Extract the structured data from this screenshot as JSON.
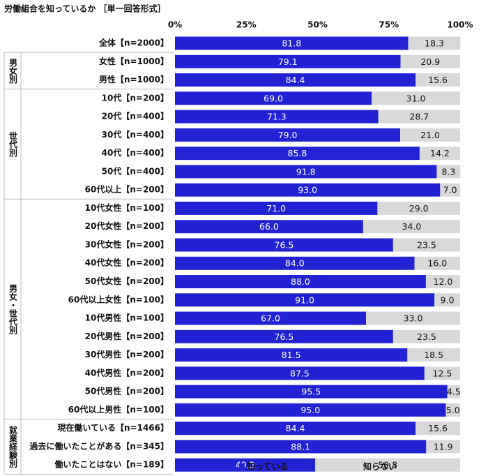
{
  "chart_data": {
    "type": "stacked-bar-h",
    "title": "労働組合を知っているか ［単一回答形式］",
    "categories": [
      "全体【n=2000】",
      "女性【n=1000】",
      "男性【n=1000】",
      "10代【n=200】",
      "20代【n=400】",
      "30代【n=400】",
      "40代【n=400】",
      "50代【n=400】",
      "60代以上【n=200】",
      "10代女性【n=100】",
      "20代女性【n=200】",
      "30代女性【n=200】",
      "40代女性【n=200】",
      "50代女性【n=200】",
      "60代以上女性【n=100】",
      "10代男性【n=100】",
      "20代男性【n=200】",
      "30代男性【n=200】",
      "40代男性【n=200】",
      "50代男性【n=200】",
      "60代以上男性【n=100】",
      "現在働いている【n=1466】",
      "過去に働いたことがある【n=345】",
      "働いたことはない【n=189】"
    ],
    "groups": [
      {
        "label": null,
        "size": 1
      },
      {
        "label": "男女別",
        "size": 2
      },
      {
        "label": "世代別",
        "size": 6
      },
      {
        "label": "男女・世代別",
        "size": 12
      },
      {
        "label": "就業経験別",
        "size": 3
      }
    ],
    "series": [
      {
        "name": "知っている",
        "color": "#2222d4",
        "values": [
          81.8,
          79.1,
          84.4,
          69.0,
          71.3,
          79.0,
          85.8,
          91.8,
          93.0,
          71.0,
          66.0,
          76.5,
          84.0,
          88.0,
          91.0,
          67.0,
          76.5,
          81.5,
          87.5,
          95.5,
          95.0,
          84.4,
          88.1,
          49.2
        ],
        "value_labels": [
          "81.8",
          "79.1",
          "84.4",
          "69.0",
          "71.3",
          "79.0",
          "85.8",
          "91.8",
          "93.0",
          "71.0",
          "66.0",
          "76.5",
          "84.0",
          "88.0",
          "91.0",
          "67.0",
          "76.5",
          "81.5",
          "87.5",
          "95.5",
          "95.0",
          "84.4",
          "88.1",
          "49.2"
        ]
      },
      {
        "name": "知らない",
        "color": "#d9d9d9",
        "values": [
          18.3,
          20.9,
          15.6,
          31.0,
          28.7,
          21.0,
          14.2,
          8.3,
          7.0,
          29.0,
          34.0,
          23.5,
          16.0,
          12.0,
          9.0,
          33.0,
          23.5,
          18.5,
          12.5,
          4.5,
          5.0,
          15.6,
          11.9,
          50.8
        ],
        "value_labels": [
          "18.3",
          "20.9",
          "15.6",
          "31.0",
          "28.7",
          "21.0",
          "14.2",
          "8.3",
          "7.0",
          "29.0",
          "34.0",
          "23.5",
          "16.0",
          "12.0",
          "9.0",
          "33.0",
          "23.5",
          "18.5",
          "12.5",
          "4.5",
          "5.0",
          "15.6",
          "11.9",
          "50.8"
        ]
      }
    ],
    "xlim": [
      0,
      100
    ],
    "xticks": [
      {
        "value": 0,
        "label": "0%"
      },
      {
        "value": 25,
        "label": "25%"
      },
      {
        "value": 50,
        "label": "50%"
      },
      {
        "value": 75,
        "label": "75%"
      },
      {
        "value": 100,
        "label": "100%"
      }
    ]
  }
}
